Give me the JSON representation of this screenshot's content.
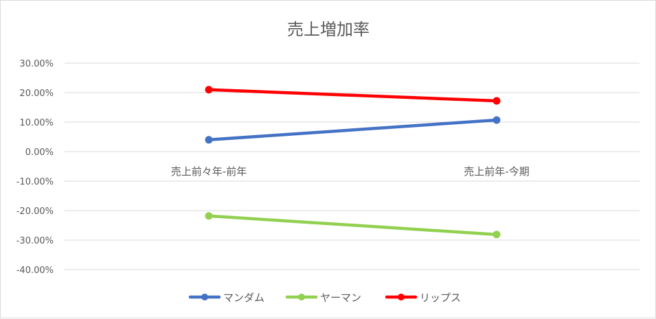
{
  "chart_data": {
    "type": "line",
    "title": "売上増加率",
    "categories": [
      "売上前々年-前年",
      "売上前年-今期"
    ],
    "series": [
      {
        "name": "マンダム",
        "color": "#4472c4",
        "values": [
          0.04,
          0.107
        ]
      },
      {
        "name": "ヤーマン",
        "color": "#92d050",
        "values": [
          -0.218,
          -0.281
        ]
      },
      {
        "name": "リップス",
        "color": "#ff0000",
        "values": [
          0.21,
          0.172
        ]
      }
    ],
    "ylim": [
      -0.4,
      0.3
    ],
    "yticks": [
      0.3,
      0.2,
      0.1,
      0.0,
      -0.1,
      -0.2,
      -0.3,
      -0.4
    ],
    "ytick_labels": [
      "30.00%",
      "20.00%",
      "10.00%",
      "0.00%",
      "-10.00%",
      "-20.00%",
      "-30.00%",
      "-40.00%"
    ],
    "grid": true,
    "legend_position": "bottom"
  }
}
